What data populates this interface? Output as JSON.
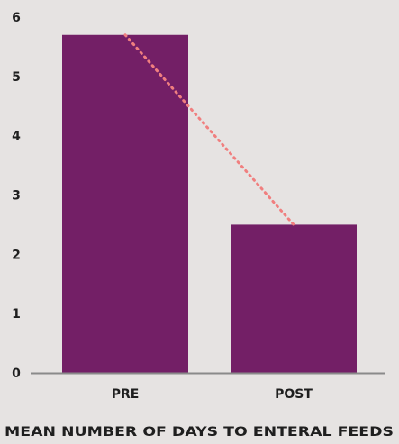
{
  "chart_data": {
    "type": "bar",
    "categories": [
      "PRE",
      "POST"
    ],
    "values": [
      5.7,
      2.5
    ],
    "xlabel": "MEAN NUMBER OF DAYS TO ENTERAL FEEDS",
    "ylabel": "",
    "ylim": [
      0,
      6
    ],
    "yticks": [
      0,
      1,
      2,
      3,
      4,
      5,
      6
    ],
    "grid": false,
    "bar_color": "#731f66",
    "trend_line_color": "#f07f7f",
    "trend_line_style": "dotted",
    "axis_color": "#8a8a8a"
  }
}
